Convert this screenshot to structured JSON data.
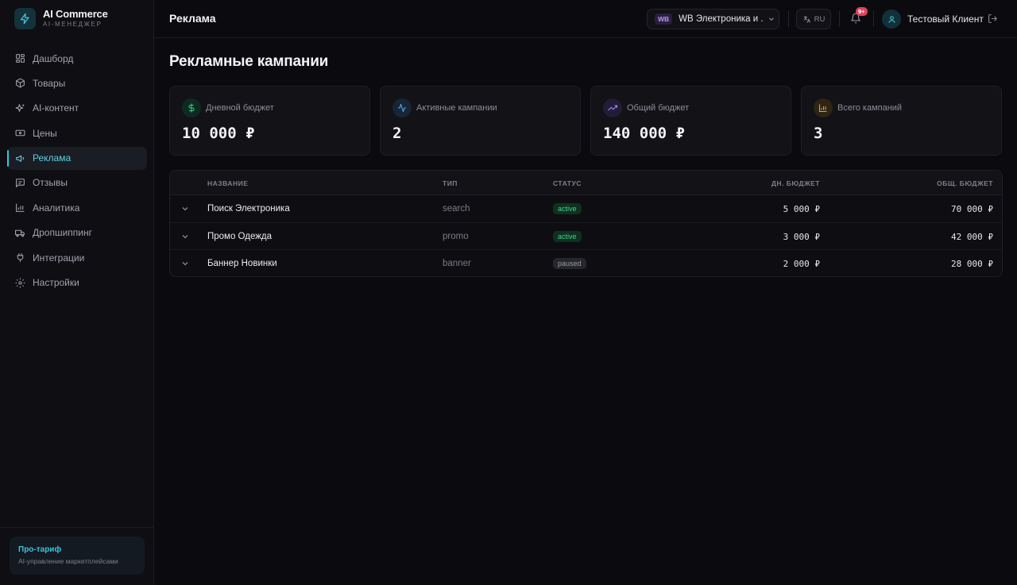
{
  "brand": {
    "name": "AI Commerce",
    "subtitle": "AI-МЕНЕДЖЕР"
  },
  "sidebar": {
    "items": [
      {
        "label": "Дашборд",
        "icon": "dashboard-icon"
      },
      {
        "label": "Товары",
        "icon": "box-icon"
      },
      {
        "label": "AI-контент",
        "icon": "sparkles-icon"
      },
      {
        "label": "Цены",
        "icon": "price-tag-icon"
      },
      {
        "label": "Реклама",
        "icon": "megaphone-icon",
        "active": true
      },
      {
        "label": "Отзывы",
        "icon": "message-icon"
      },
      {
        "label": "Аналитика",
        "icon": "bar-chart-icon"
      },
      {
        "label": "Дропшиппинг",
        "icon": "truck-icon"
      },
      {
        "label": "Интеграции",
        "icon": "plug-icon"
      },
      {
        "label": "Настройки",
        "icon": "gear-icon"
      }
    ],
    "plan": {
      "title": "Про-тариф",
      "subtitle": "AI-управление маркетплейсами"
    }
  },
  "header": {
    "title": "Реклама",
    "store": {
      "badge": "WB",
      "name": "WB Электроника и ..."
    },
    "language": "RU",
    "notifications_badge": "9+",
    "user_name": "Тестовый Клиент"
  },
  "main": {
    "title": "Рекламные кампании",
    "stats": [
      {
        "label": "Дневной бюджет",
        "value": "10 000 ₽",
        "icon": "dollar-icon",
        "color": "#2ecc8a"
      },
      {
        "label": "Активные кампании",
        "value": "2",
        "icon": "activity-icon",
        "color": "#5aa7f0"
      },
      {
        "label": "Общий бюджет",
        "value": "140 000 ₽",
        "icon": "trending-up-icon",
        "color": "#a58af2"
      },
      {
        "label": "Всего кампаний",
        "value": "3",
        "icon": "bar-chart-icon",
        "color": "#e0a23a"
      }
    ],
    "table": {
      "columns": {
        "name": "НАЗВАНИЕ",
        "type": "ТИП",
        "status": "СТАТУС",
        "day_budget": "ДН. БЮДЖЕТ",
        "total_budget": "ОБЩ. БЮДЖЕТ"
      },
      "rows": [
        {
          "name": "Поиск Электроника",
          "type": "search",
          "status": "active",
          "day_budget": "5 000 ₽",
          "total_budget": "70 000 ₽"
        },
        {
          "name": "Промо Одежда",
          "type": "promo",
          "status": "active",
          "day_budget": "3 000 ₽",
          "total_budget": "42 000 ₽"
        },
        {
          "name": "Баннер Новинки",
          "type": "banner",
          "status": "paused",
          "day_budget": "2 000 ₽",
          "total_budget": "28 000 ₽"
        }
      ]
    }
  },
  "colors": {
    "accent": "#34c6dd",
    "background": "#0b0b0f",
    "active_status": "#3ed38a",
    "badge": "#e0435b"
  }
}
